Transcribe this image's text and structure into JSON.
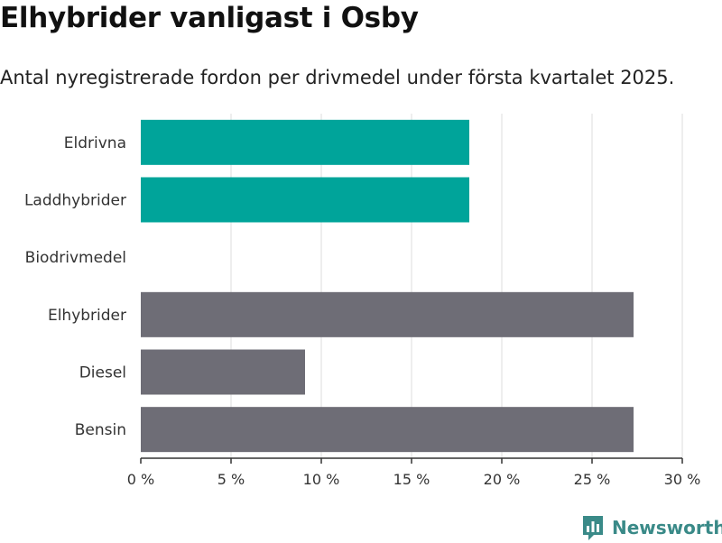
{
  "header": {
    "title": "Elhybrider vanligast i Osby",
    "subtitle": "Antal nyregistrerade fordon per drivmedel under första kvartalet 2025."
  },
  "brand": {
    "name": "Newsworthy",
    "icon": "newsworthy-logo-icon"
  },
  "colors": {
    "highlight": "#00a49a",
    "default": "#6e6d76",
    "grid": "#dddddd",
    "axis": "#333333"
  },
  "chart_data": {
    "type": "bar",
    "orientation": "horizontal",
    "categories": [
      "Eldrivna",
      "Laddhybrider",
      "Biodrivmedel",
      "Elhybrider",
      "Diesel",
      "Bensin"
    ],
    "values": [
      18.2,
      18.2,
      0,
      27.3,
      9.1,
      27.3
    ],
    "highlighted": [
      true,
      true,
      true,
      false,
      false,
      false
    ],
    "xlim": [
      0,
      30
    ],
    "xticks": [
      0,
      5,
      10,
      15,
      20,
      25,
      30
    ],
    "tick_labels": [
      "0 %",
      "5 %",
      "10 %",
      "15 %",
      "20 %",
      "25 %",
      "30 %"
    ],
    "grid": true
  }
}
